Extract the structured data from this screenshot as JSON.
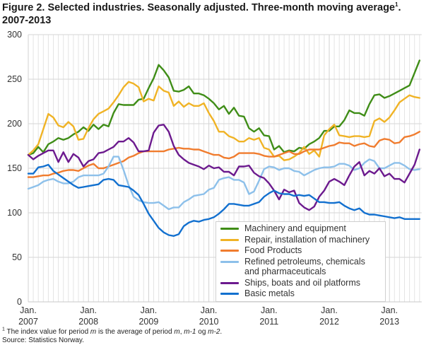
{
  "chart_data": {
    "type": "line",
    "title": "Figure 2. Selected industries. Seasonally adjusted. Three-month moving average",
    "title_sup": "1",
    "title_line2": "2007-2013",
    "x_start": "2007-01",
    "x_end": "2013-07",
    "x_frequency": "monthly",
    "ylim": [
      0,
      300
    ],
    "yticks": [
      "0",
      "50",
      "100",
      "150",
      "200",
      "250",
      "300"
    ],
    "xticks": [
      {
        "month": "Jan.",
        "year": "2007"
      },
      {
        "month": "Jan.",
        "year": "2008"
      },
      {
        "month": "Jan.",
        "year": "2009"
      },
      {
        "month": "Jan.",
        "year": "2010"
      },
      {
        "month": "Jan.",
        "year": "2011"
      },
      {
        "month": "Jan.",
        "year": "2012"
      },
      {
        "month": "Jan.",
        "year": "2013"
      }
    ],
    "grid": true,
    "legend_position": "bottom-right-inside",
    "series": [
      {
        "name": "Machinery and equipment",
        "color": "#3f8d17",
        "values": [
          165,
          167,
          174,
          168,
          177,
          180,
          184,
          182,
          184,
          188,
          191,
          196,
          192,
          199,
          194,
          199,
          197,
          212,
          222,
          221,
          221,
          221,
          227,
          228,
          240,
          251,
          266,
          260,
          252,
          237,
          236,
          238,
          242,
          234,
          234,
          232,
          228,
          223,
          216,
          220,
          211,
          218,
          209,
          208,
          195,
          191,
          195,
          187,
          186,
          171,
          175,
          168,
          170,
          169,
          173,
          172,
          177,
          180,
          184,
          192,
          192,
          197,
          197,
          204,
          215,
          212,
          212,
          209,
          222,
          232,
          233,
          229,
          231,
          234,
          237,
          240,
          243,
          257,
          271
        ]
      },
      {
        "name": "Repair, installation of machinery",
        "color": "#f0b325",
        "values": [
          165,
          170,
          177,
          194,
          211,
          207,
          198,
          196,
          202,
          197,
          182,
          183,
          195,
          205,
          211,
          214,
          217,
          224,
          232,
          241,
          247,
          245,
          241,
          225,
          228,
          226,
          242,
          237,
          235,
          220,
          225,
          219,
          223,
          220,
          220,
          223,
          212,
          203,
          191,
          191,
          186,
          184,
          180,
          180,
          184,
          182,
          184,
          173,
          171,
          163,
          164,
          159,
          160,
          163,
          167,
          174,
          166,
          170,
          163,
          187,
          194,
          199,
          187,
          186,
          185,
          186,
          186,
          185,
          186,
          203,
          206,
          202,
          207,
          215,
          224,
          228,
          232,
          230,
          229
        ]
      },
      {
        "name": "Food Products",
        "color": "#f07c2e",
        "values": [
          140,
          140,
          141,
          142,
          142,
          144,
          145,
          147,
          148,
          148,
          147,
          150,
          153,
          155,
          150,
          150,
          152,
          154,
          156,
          158,
          162,
          164,
          167,
          169,
          169,
          169,
          169,
          169,
          171,
          172,
          173,
          172,
          172,
          171,
          171,
          169,
          167,
          165,
          165,
          162,
          161,
          163,
          167,
          167,
          167,
          167,
          166,
          164,
          163,
          163,
          165,
          167,
          169,
          166,
          166,
          169,
          171,
          171,
          171,
          173,
          175,
          176,
          179,
          178,
          178,
          175,
          177,
          178,
          175,
          174,
          181,
          183,
          182,
          178,
          179,
          185,
          186,
          188,
          191
        ]
      },
      {
        "name": "Refined petroleums, chemicals and pharmaceuticals",
        "color": "#8dc0ea",
        "values": [
          127,
          129,
          131,
          135,
          137,
          138,
          135,
          133,
          133,
          135,
          140,
          142,
          142,
          142,
          142,
          144,
          152,
          163,
          163,
          148,
          131,
          118,
          114,
          112,
          111,
          111,
          112,
          108,
          104,
          106,
          106,
          112,
          115,
          119,
          120,
          121,
          126,
          128,
          137,
          139,
          140,
          137,
          137,
          134,
          121,
          124,
          136,
          149,
          152,
          151,
          148,
          150,
          150,
          147,
          146,
          142,
          145,
          148,
          150,
          151,
          151,
          152,
          155,
          155,
          153,
          148,
          150,
          156,
          160,
          158,
          150,
          150,
          153,
          156,
          156,
          153,
          149,
          148,
          149
        ]
      },
      {
        "name": "Ships, boats and oil platforms",
        "color": "#6c1a8e",
        "values": [
          165,
          160,
          164,
          167,
          170,
          170,
          157,
          168,
          157,
          166,
          162,
          152,
          158,
          160,
          167,
          168,
          171,
          174,
          180,
          180,
          184,
          179,
          169,
          169,
          170,
          190,
          198,
          199,
          191,
          175,
          165,
          160,
          156,
          154,
          152,
          149,
          153,
          150,
          151,
          146,
          146,
          142,
          152,
          152,
          153,
          145,
          141,
          139,
          133,
          125,
          115,
          126,
          123,
          125,
          111,
          106,
          103,
          107,
          118,
          125,
          135,
          138,
          135,
          131,
          142,
          152,
          157,
          142,
          147,
          144,
          150,
          141,
          144,
          138,
          138,
          134,
          144,
          154,
          171
        ]
      },
      {
        "name": "Basic metals",
        "color": "#1270cf",
        "values": [
          144,
          144,
          151,
          152,
          154,
          147,
          143,
          139,
          135,
          131,
          128,
          129,
          130,
          131,
          132,
          137,
          138,
          137,
          131,
          130,
          129,
          125,
          120,
          110,
          99,
          91,
          83,
          78,
          75,
          74,
          76,
          85,
          89,
          91,
          90,
          92,
          93,
          95,
          99,
          104,
          110,
          110,
          109,
          108,
          108,
          110,
          112,
          118,
          122,
          125,
          122,
          121,
          121,
          119,
          120,
          119,
          120,
          116,
          112,
          112,
          111,
          111,
          112,
          108,
          105,
          103,
          105,
          100,
          98,
          98,
          97,
          96,
          95,
          94,
          95,
          93,
          93,
          93,
          93
        ]
      }
    ]
  },
  "footnote": {
    "sup": "1",
    "text_before": " The index value for period ",
    "m1": "m",
    "text_mid1": " is the average of period ",
    "m2": "m",
    "text_mid2": ", ",
    "m3": "m-1",
    "text_mid3": " og ",
    "m4": "m-2",
    "text_end": ".",
    "source": "Source: Statistics Norway."
  }
}
